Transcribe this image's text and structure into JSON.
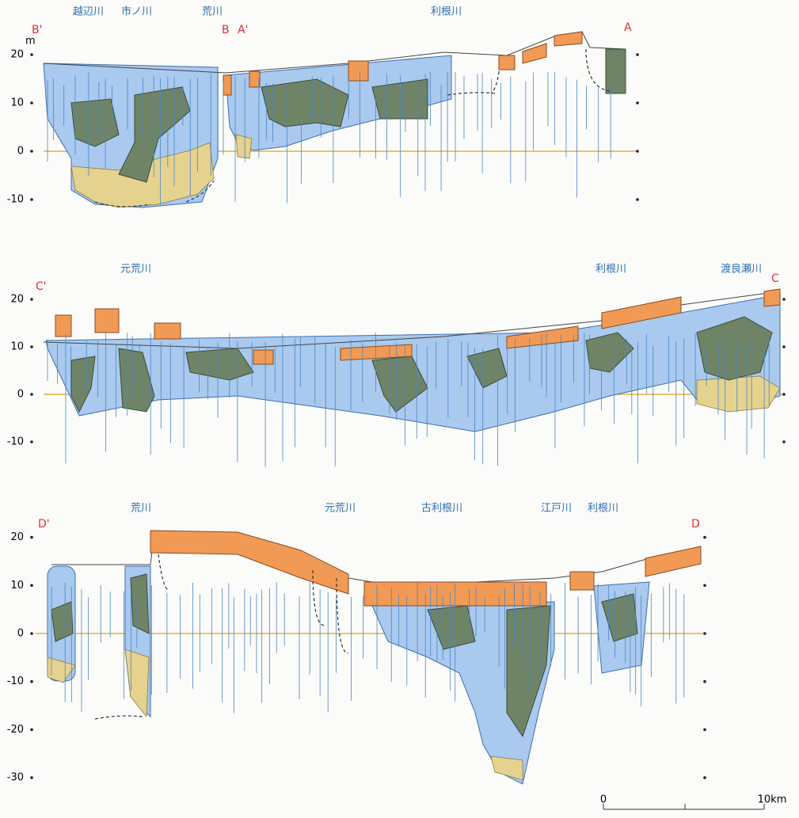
{
  "panels": [
    {
      "left_label": "B'",
      "mid_labels": [
        "B",
        "A'"
      ],
      "right_label": "A",
      "unit": "m",
      "rivers": [
        "越辺川",
        "市ノ川",
        "荒川",
        "利根川"
      ],
      "yticks": [
        20,
        10,
        0,
        -10
      ]
    },
    {
      "left_label": "C'",
      "right_label": "C",
      "rivers": [
        "元荒川",
        "利根川",
        "渡良瀬川"
      ],
      "yticks": [
        20,
        10,
        0,
        -10
      ]
    },
    {
      "left_label": "D'",
      "right_label": "D",
      "rivers": [
        "荒川",
        "元荒川",
        "古利根川",
        "江戸川",
        "利根川"
      ],
      "yticks": [
        20,
        10,
        0,
        -10,
        -20,
        -30
      ]
    }
  ],
  "scale": {
    "start": "0",
    "end": "10km"
  }
}
